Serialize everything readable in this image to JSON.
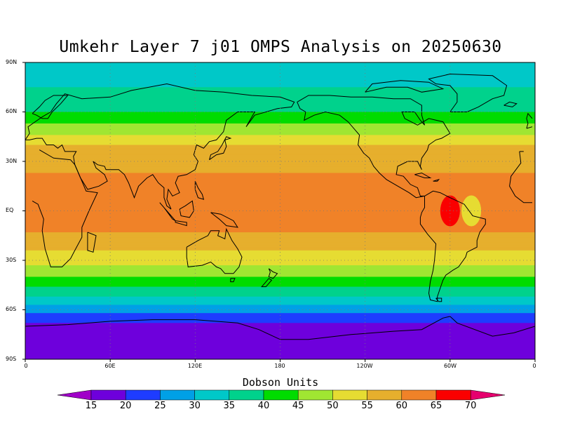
{
  "title": "Umkehr Layer 7 j01 OMPS Analysis on 20250630",
  "units_label": "Dobson Units",
  "lat_labels": [
    "90N",
    "60N",
    "30N",
    "EQ",
    "30S",
    "60S",
    "90S"
  ],
  "lon_labels": [
    "0",
    "60E",
    "120E",
    "180",
    "120W",
    "60W",
    "0"
  ],
  "colorbar": {
    "levels": [
      "15",
      "20",
      "25",
      "30",
      "35",
      "40",
      "45",
      "50",
      "55",
      "60",
      "65",
      "70"
    ],
    "colors": [
      "#a000c8",
      "#6e00dc",
      "#1e3cff",
      "#00a0e6",
      "#00c8c8",
      "#00d28c",
      "#00dc00",
      "#a0e632",
      "#e6dc32",
      "#e6af2d",
      "#f08228",
      "#fa0000",
      "#e6006e"
    ]
  },
  "chart_data": {
    "type": "heatmap",
    "title": "Umkehr Layer 7 j01 OMPS Analysis on 20250630",
    "units": "Dobson Units",
    "x_axis": "longitude",
    "y_axis": "latitude",
    "xlim": [
      0,
      360
    ],
    "ylim": [
      -90,
      90
    ],
    "contour_levels": [
      15,
      20,
      25,
      30,
      35,
      40,
      45,
      50,
      55,
      60,
      65,
      70
    ],
    "zonal_profile": [
      {
        "lat": 90,
        "value": 33
      },
      {
        "lat": 75,
        "value": 35
      },
      {
        "lat": 60,
        "value": 40
      },
      {
        "lat": 50,
        "value": 47
      },
      {
        "lat": 40,
        "value": 55
      },
      {
        "lat": 30,
        "value": 58
      },
      {
        "lat": 20,
        "value": 61
      },
      {
        "lat": 10,
        "value": 62
      },
      {
        "lat": 0,
        "value": 62
      },
      {
        "lat": -10,
        "value": 61
      },
      {
        "lat": -20,
        "value": 57
      },
      {
        "lat": -30,
        "value": 52
      },
      {
        "lat": -40,
        "value": 45
      },
      {
        "lat": -50,
        "value": 37
      },
      {
        "lat": -60,
        "value": 27
      },
      {
        "lat": -70,
        "value": 18
      },
      {
        "lat": -90,
        "value": 17
      }
    ],
    "features": [
      {
        "lon": 300,
        "lat": 0,
        "value": 67
      },
      {
        "lon": 315,
        "lat": 0,
        "value": 52
      }
    ]
  }
}
